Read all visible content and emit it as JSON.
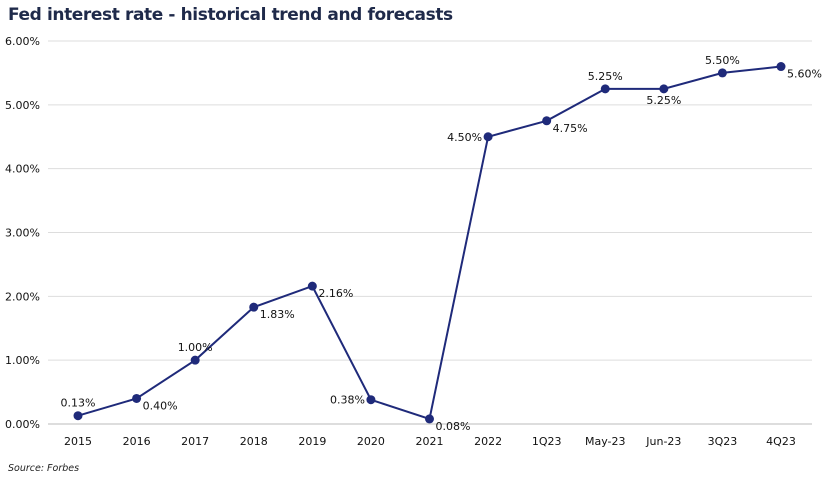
{
  "chart_data": {
    "type": "line",
    "title": "Fed interest rate - historical trend and forecasts",
    "source": "Source: Forbes",
    "categories": [
      "2015",
      "2016",
      "2017",
      "2018",
      "2019",
      "2020",
      "2021",
      "2022",
      "1Q23",
      "May-23",
      "Jun-23",
      "3Q23",
      "4Q23"
    ],
    "series": [
      {
        "values": [
          0.13,
          0.4,
          1.0,
          1.83,
          2.16,
          0.38,
          0.08,
          4.5,
          4.75,
          5.25,
          5.25,
          5.5,
          5.6
        ],
        "labels": [
          "0.13%",
          "0.40%",
          "1.00%",
          "1.83%",
          "2.16%",
          "0.38%",
          "0.08%",
          "4.50%",
          "4.75%",
          "5.25%",
          "5.25%",
          "5.50%",
          "5.60%"
        ],
        "label_positions": [
          "above",
          "right",
          "above",
          "right",
          "right",
          "left",
          "right",
          "left",
          "right",
          "above",
          "below",
          "above",
          "right"
        ]
      }
    ],
    "yticks": [
      "0.00%",
      "1.00%",
      "2.00%",
      "3.00%",
      "4.00%",
      "5.00%",
      "6.00%"
    ],
    "ylim": [
      0,
      6
    ],
    "grid": true,
    "line_color": "#1f2a7a",
    "grid_color": "#dddddd"
  }
}
